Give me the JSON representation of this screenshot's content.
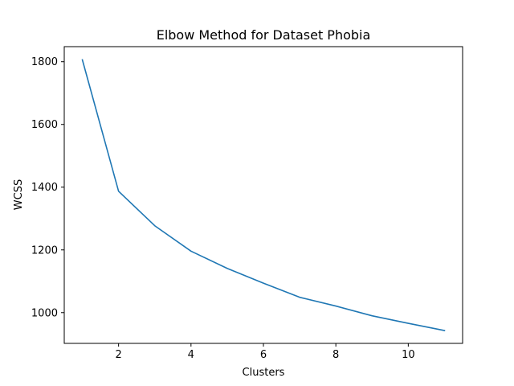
{
  "chart_data": {
    "type": "line",
    "title": "Elbow Method for Dataset Phobia",
    "xlabel": "Clusters",
    "ylabel": "WCSS",
    "x": [
      1,
      2,
      3,
      4,
      5,
      6,
      7,
      8,
      9,
      10,
      11
    ],
    "series": [
      {
        "values": [
          1806,
          1387,
          1277,
          1196,
          1141,
          1094,
          1049,
          1021,
          990,
          966,
          943
        ],
        "color": "#1f77b4"
      }
    ],
    "xlim": [
      0.5,
      11.5
    ],
    "ylim": [
      902,
      1848
    ],
    "xticks": [
      2,
      4,
      6,
      8,
      10
    ],
    "yticks": [
      1000,
      1200,
      1400,
      1600,
      1800
    ],
    "grid": false,
    "legend": "none"
  }
}
